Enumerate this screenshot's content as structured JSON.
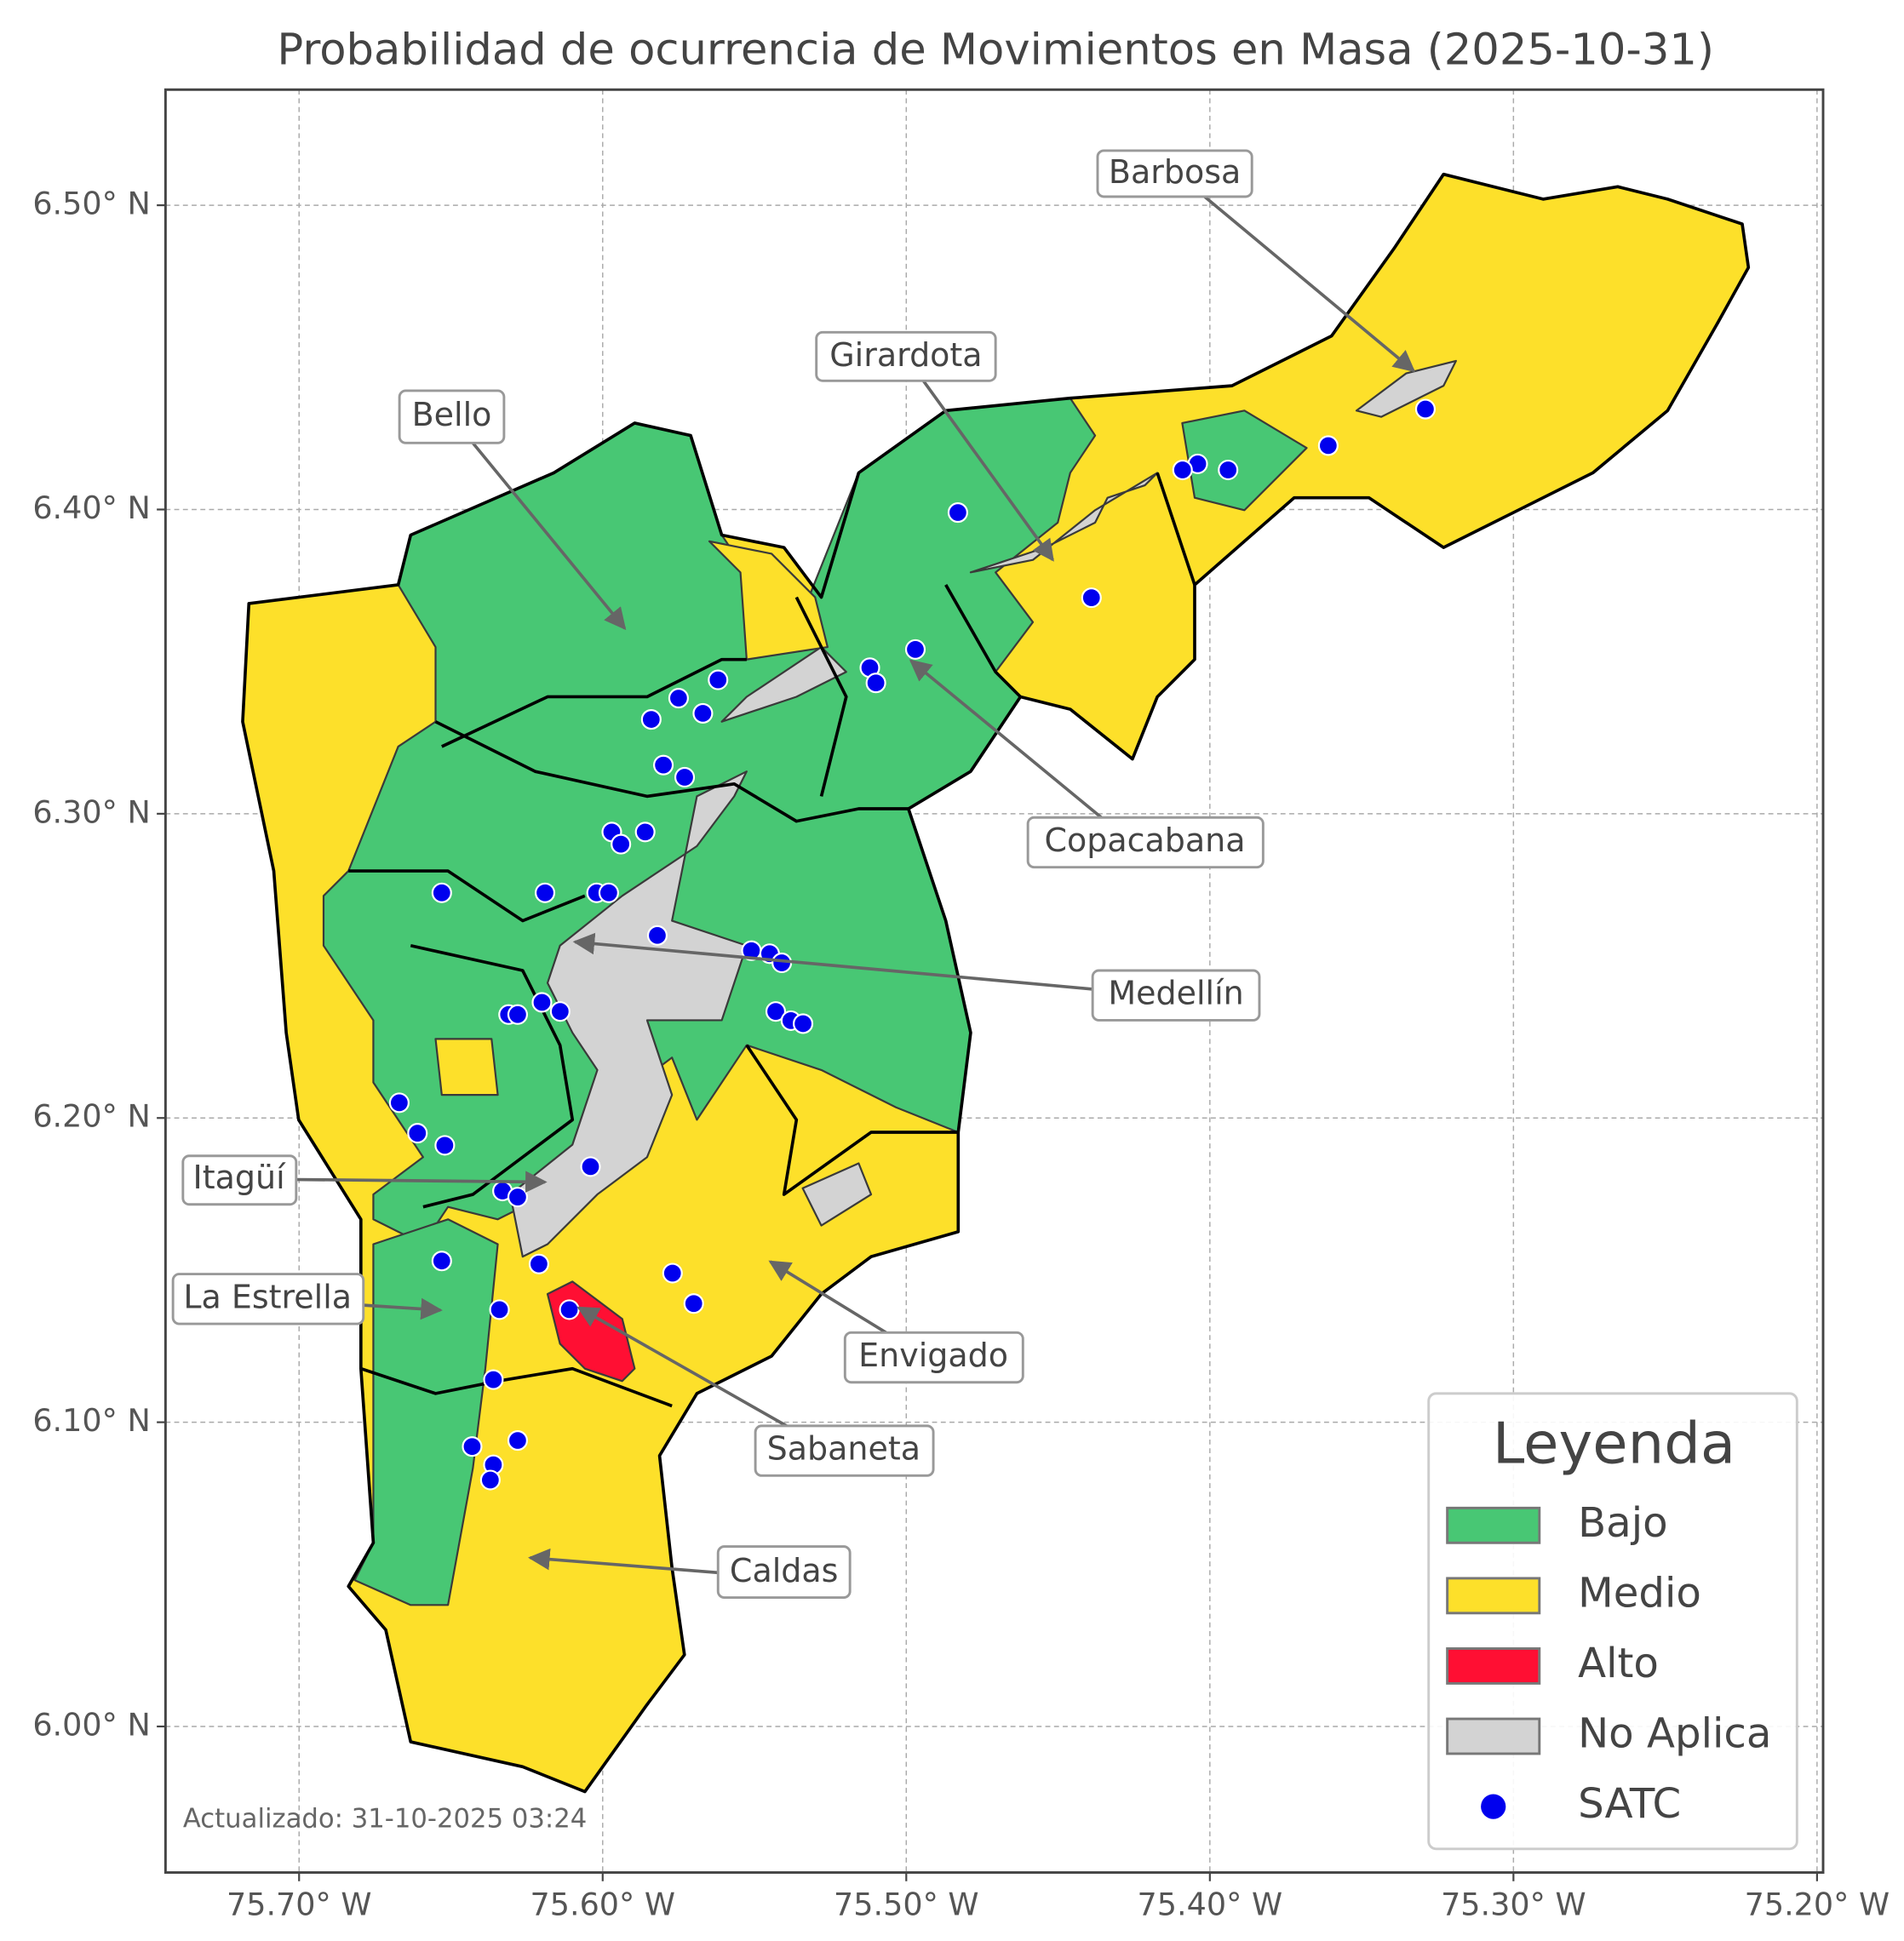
{
  "map": {
    "type": "choropleth",
    "title": "Probabilidad de ocurrencia de Movimientos en Masa (2025-10-31)",
    "footnote": "Actualizado: 31-10-2025 03:24",
    "xlim": [
      -75.744,
      -75.198
    ],
    "ylim": [
      5.952,
      6.538
    ],
    "grid": true,
    "xticks": [
      {
        "value": -75.7,
        "label": "75.70° W"
      },
      {
        "value": -75.6,
        "label": "75.60° W"
      },
      {
        "value": -75.5,
        "label": "75.50° W"
      },
      {
        "value": -75.4,
        "label": "75.40° W"
      },
      {
        "value": -75.3,
        "label": "75.30° W"
      },
      {
        "value": -75.2,
        "label": "75.20° W"
      }
    ],
    "yticks": [
      {
        "value": 6.0,
        "label": "6.00° N"
      },
      {
        "value": 6.1,
        "label": "6.10° N"
      },
      {
        "value": 6.2,
        "label": "6.20° N"
      },
      {
        "value": 6.3,
        "label": "6.30° N"
      },
      {
        "value": 6.4,
        "label": "6.40° N"
      },
      {
        "value": 6.5,
        "label": "6.50° N"
      }
    ],
    "legend": {
      "title": "Leyenda",
      "position": "lower right",
      "items": [
        {
          "label": "Bajo",
          "color": "#48c774"
        },
        {
          "label": "Medio",
          "color": "#fde02a"
        },
        {
          "label": "Alto",
          "color": "#ff0f33"
        },
        {
          "label": "No Aplica",
          "color": "#d3d3d3"
        },
        {
          "label": "SATC",
          "color": "#0000ee"
        }
      ]
    },
    "annotations": [
      "Barbosa",
      "Girardota",
      "Bello",
      "Copacabana",
      "Medellín",
      "Itagüí",
      "La Estrella",
      "Envigado",
      "Sabaneta",
      "Caldas"
    ],
    "stations": {
      "lon": [
        -75.329,
        -75.361,
        -75.394,
        -75.404,
        -75.409,
        -75.483,
        -75.439,
        -75.497,
        -75.512,
        -75.51,
        -75.562,
        -75.575,
        -75.584,
        -75.567,
        -75.58,
        -75.573,
        -75.597,
        -75.586,
        -75.594,
        -75.653,
        -75.619,
        -75.602,
        -75.598,
        -75.582,
        -75.551,
        -75.545,
        -75.541,
        -75.62,
        -75.631,
        -75.628,
        -75.614,
        -75.543,
        -75.538,
        -75.534,
        -75.667,
        -75.661,
        -75.652,
        -75.604,
        -75.633,
        -75.628,
        -75.653,
        -75.621,
        -75.577,
        -75.57,
        -75.634,
        -75.611,
        -75.636,
        -75.643,
        -75.628,
        -75.636,
        -75.637
      ],
      "lat": [
        6.433,
        6.421,
        6.413,
        6.415,
        6.413,
        6.399,
        6.371,
        6.354,
        6.348,
        6.343,
        6.344,
        6.338,
        6.331,
        6.333,
        6.316,
        6.312,
        6.294,
        6.294,
        6.29,
        6.274,
        6.274,
        6.274,
        6.274,
        6.26,
        6.255,
        6.254,
        6.251,
        6.238,
        6.234,
        6.234,
        6.235,
        6.235,
        6.232,
        6.231,
        6.205,
        6.195,
        6.191,
        6.184,
        6.176,
        6.174,
        6.153,
        6.152,
        6.149,
        6.139,
        6.137,
        6.137,
        6.114,
        6.092,
        6.094,
        6.086,
        6.081
      ]
    }
  }
}
